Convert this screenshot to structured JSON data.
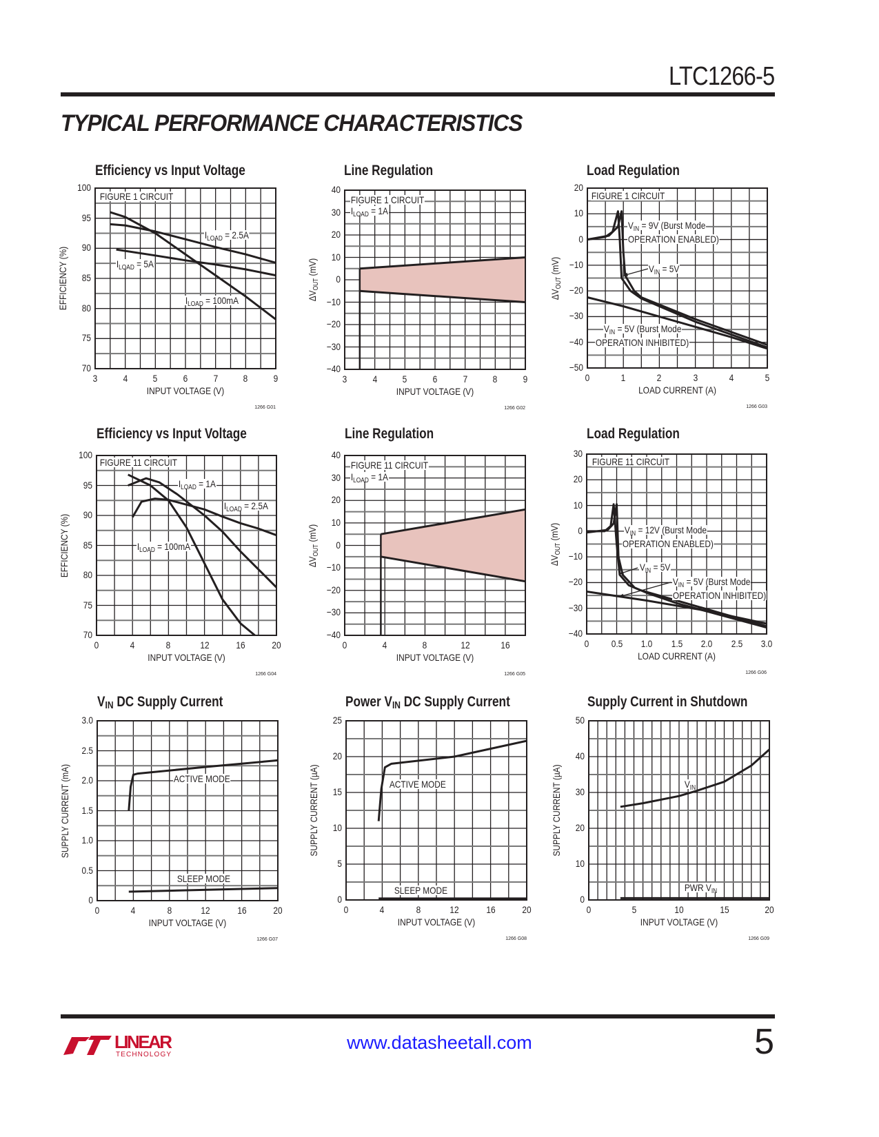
{
  "header": {
    "part_number": "LTC1266-5",
    "section_title": "TYPICAL PERFORMANCE CHARACTERISTICS"
  },
  "footer": {
    "logo_text": "LINEAR TECHNOLOGY",
    "url": "www.datasheetall.com",
    "page_number": "5"
  },
  "colors": {
    "ink": "#231f20",
    "band_fill": "#e8c3bd",
    "url": "#1a1aff"
  },
  "chart_data": [
    {
      "type": "line",
      "code": "1266 G01",
      "title": {
        "pre": "",
        "sub": "",
        "post": "Efficiency vs Input Voltage"
      },
      "xlabel": {
        "pre": "INPUT VOLTAGE (V)",
        "sub": "",
        "post": ""
      },
      "ylabel": {
        "pre": "EFFICIENCY (%)",
        "sub": "",
        "post": ""
      },
      "xlim": [
        3,
        9
      ],
      "ylim": [
        70,
        100
      ],
      "xticks": [
        "3",
        "4",
        "5",
        "6",
        "7",
        "8",
        "9"
      ],
      "yticks": [
        "70",
        "75",
        "80",
        "85",
        "90",
        "95",
        "100"
      ],
      "grid": true,
      "annotations": [
        {
          "pre": "FIGURE 1 CIRCUIT",
          "sub": "",
          "post": ""
        },
        {
          "pre": "I",
          "sub": "LOAD",
          "post": " = 2.5A"
        },
        {
          "pre": "I",
          "sub": "LOAD",
          "post": " = 5A"
        },
        {
          "pre": "I",
          "sub": "LOAD",
          "post": " = 100mA"
        }
      ],
      "series": [
        {
          "name": "ILOAD = 100mA",
          "x": [
            3.5,
            4,
            5,
            6,
            7,
            8,
            9
          ],
          "y": [
            96,
            95.2,
            92.5,
            89,
            85.5,
            82,
            78.2
          ]
        },
        {
          "name": "ILOAD = 2.5A",
          "x": [
            3.5,
            4,
            5,
            6,
            7,
            8,
            9
          ],
          "y": [
            94,
            93.8,
            92.8,
            91.5,
            90.2,
            89,
            87.6
          ]
        },
        {
          "name": "ILOAD = 5A",
          "x": [
            3.7,
            5,
            6,
            7,
            8,
            9
          ],
          "y": [
            89.8,
            88.8,
            88,
            87.3,
            86.5,
            85.5
          ]
        }
      ]
    },
    {
      "type": "area",
      "code": "1266 G02",
      "title": {
        "pre": "",
        "sub": "",
        "post": "Line Regulation"
      },
      "xlabel": {
        "pre": "INPUT VOLTAGE (V)",
        "sub": "",
        "post": ""
      },
      "ylabel": {
        "pre": "ΔV",
        "sub": "OUT",
        "post": " (mV)"
      },
      "xlim": [
        3,
        9
      ],
      "ylim": [
        -40,
        40
      ],
      "xticks": [
        "3",
        "4",
        "5",
        "6",
        "7",
        "8",
        "9"
      ],
      "yticks": [
        "−40",
        "−30",
        "−20",
        "−10",
        "0",
        "10",
        "20",
        "30",
        "40"
      ],
      "grid": true,
      "annotations": [
        {
          "pre": "FIGURE 1 CIRCUIT",
          "sub": "",
          "post": ""
        },
        {
          "pre": "I",
          "sub": "LOAD",
          "post": " = 1A"
        }
      ],
      "band": {
        "x": [
          3.5,
          9
        ],
        "upper": [
          5,
          10
        ],
        "lower": [
          -5,
          -10
        ]
      },
      "startup_x": 3.5
    },
    {
      "type": "line",
      "code": "1266 G03",
      "title": {
        "pre": "",
        "sub": "",
        "post": "Load Regulation"
      },
      "xlabel": {
        "pre": "LOAD CURRENT (A)",
        "sub": "",
        "post": ""
      },
      "ylabel": {
        "pre": "ΔV",
        "sub": "OUT",
        "post": " (mV)"
      },
      "xlim": [
        0,
        5
      ],
      "ylim": [
        -50,
        20
      ],
      "xticks": [
        "0",
        "1",
        "2",
        "3",
        "4",
        "5"
      ],
      "yticks": [
        "−50",
        "−40",
        "−30",
        "−20",
        "−10",
        "0",
        "10",
        "20"
      ],
      "grid": true,
      "annotations": [
        {
          "pre": "FIGURE 1 CIRCUIT",
          "sub": "",
          "post": ""
        },
        {
          "pre": "V",
          "sub": "IN",
          "post": " = 9V (Burst Mode"
        },
        {
          "pre": "OPERATION ENABLED)",
          "sub": "",
          "post": ""
        },
        {
          "pre": "V",
          "sub": "IN",
          "post": " = 5V"
        },
        {
          "pre": "V",
          "sub": "IN",
          "post": " = 5V (Burst Mode"
        },
        {
          "pre": "OPERATION INHIBITED)",
          "sub": "",
          "post": ""
        }
      ],
      "series": [
        {
          "name": "VIN = 9V (Burst Mode operation enabled)",
          "x": [
            0,
            0.5,
            0.7,
            0.85,
            0.9,
            0.95,
            1.2,
            1.5,
            3,
            5
          ],
          "y": [
            0,
            1,
            3,
            11,
            0,
            -15,
            -20,
            -23,
            -32,
            -42
          ]
        },
        {
          "name": "VIN = 5V",
          "x": [
            0,
            0.6,
            0.85,
            0.95,
            1.0,
            1.05,
            1.3,
            1.5,
            3,
            5
          ],
          "y": [
            0,
            1.5,
            5,
            11,
            -5,
            -14,
            -20,
            -22.5,
            -31,
            -41
          ]
        },
        {
          "name": "VIN = 5V (Burst Mode operation inhibited)",
          "x": [
            0,
            1,
            2,
            3,
            4,
            5
          ],
          "y": [
            -22.5,
            -26,
            -30,
            -34,
            -38,
            -42.5
          ]
        }
      ]
    },
    {
      "type": "line",
      "code": "1266 G04",
      "title": {
        "pre": "",
        "sub": "",
        "post": "Efficiency vs Input Voltage"
      },
      "xlabel": {
        "pre": "INPUT VOLTAGE (V)",
        "sub": "",
        "post": ""
      },
      "ylabel": {
        "pre": "EFFICIENCY (%)",
        "sub": "",
        "post": ""
      },
      "xlim": [
        0,
        20
      ],
      "ylim": [
        70,
        100
      ],
      "xticks": [
        "0",
        "4",
        "8",
        "12",
        "16",
        "20"
      ],
      "yticks": [
        "70",
        "75",
        "80",
        "85",
        "90",
        "95",
        "100"
      ],
      "grid": true,
      "annotations": [
        {
          "pre": "FIGURE 11 CIRCUIT",
          "sub": "",
          "post": ""
        },
        {
          "pre": "I",
          "sub": "LOAD",
          "post": " = 1A"
        },
        {
          "pre": "I",
          "sub": "LOAD",
          "post": " = 2.5A"
        },
        {
          "pre": "I",
          "sub": "LOAD",
          "post": " = 100mA"
        }
      ],
      "series": [
        {
          "name": "ILOAD = 100mA",
          "x": [
            3.5,
            6,
            8,
            10,
            12,
            14,
            16,
            17.6
          ],
          "y": [
            96.8,
            95,
            92.5,
            88,
            82,
            76,
            72,
            70
          ]
        },
        {
          "name": "ILOAD = 1A",
          "x": [
            3.5,
            5.5,
            7,
            9,
            12,
            14,
            16,
            18,
            20
          ],
          "y": [
            95,
            96.2,
            95.5,
            93.5,
            90,
            87.3,
            84,
            81,
            78
          ]
        },
        {
          "name": "ILOAD = 2.5A",
          "x": [
            4,
            5,
            6.5,
            8,
            10,
            12,
            14,
            16,
            18,
            20
          ],
          "y": [
            89.7,
            92.3,
            92.8,
            92.6,
            91.8,
            91,
            89.8,
            88.7,
            87.8,
            86.7
          ]
        }
      ]
    },
    {
      "type": "area",
      "code": "1266 G05",
      "title": {
        "pre": "",
        "sub": "",
        "post": "Line Regulation"
      },
      "xlabel": {
        "pre": "INPUT VOLTAGE (V)",
        "sub": "",
        "post": ""
      },
      "ylabel": {
        "pre": "ΔV",
        "sub": "OUT",
        "post": " (mV)"
      },
      "xlim": [
        0,
        18
      ],
      "ylim": [
        -40,
        40
      ],
      "xticks": [
        "0",
        "4",
        "8",
        "12",
        "16"
      ],
      "yticks": [
        "−40",
        "−30",
        "−20",
        "−10",
        "0",
        "10",
        "20",
        "30",
        "40"
      ],
      "grid": true,
      "annotations": [
        {
          "pre": "FIGURE 11 CIRCUIT",
          "sub": "",
          "post": ""
        },
        {
          "pre": "I",
          "sub": "LOAD",
          "post": " = 1A"
        }
      ],
      "band": {
        "x": [
          3.6,
          18
        ],
        "upper": [
          5,
          16
        ],
        "lower": [
          -5,
          -16
        ]
      },
      "startup_x": 3.6
    },
    {
      "type": "line",
      "code": "1266 G06",
      "title": {
        "pre": "",
        "sub": "",
        "post": "Load Regulation"
      },
      "xlabel": {
        "pre": "LOAD CURRENT (A)",
        "sub": "",
        "post": ""
      },
      "ylabel": {
        "pre": "ΔV",
        "sub": "OUT",
        "post": " (mV)"
      },
      "xlim": [
        0,
        3
      ],
      "ylim": [
        -40,
        30
      ],
      "xticks": [
        "0",
        "0.5",
        "1.0",
        "1.5",
        "2.0",
        "2.5",
        "3.0"
      ],
      "yticks": [
        "−40",
        "−30",
        "−20",
        "−10",
        "0",
        "10",
        "20",
        "30"
      ],
      "grid": true,
      "annotations": [
        {
          "pre": "FIGURE 11 CIRCUIT",
          "sub": "",
          "post": ""
        },
        {
          "pre": "V",
          "sub": "IN",
          "post": " = 12V (Burst Mode"
        },
        {
          "pre": "OPERATION ENABLED)",
          "sub": "",
          "post": ""
        },
        {
          "pre": "V",
          "sub": "IN",
          "post": " = 5V"
        },
        {
          "pre": "V",
          "sub": "IN",
          "post": " = 5V (Burst Mode"
        },
        {
          "pre": "OPERATION INHIBITED)",
          "sub": "",
          "post": ""
        }
      ],
      "series": [
        {
          "name": "VIN = 12V (Burst Mode operation enabled)",
          "x": [
            0,
            0.3,
            0.4,
            0.45,
            0.5,
            0.55,
            0.7,
            0.9,
            1.5,
            3
          ],
          "y": [
            0,
            0,
            2,
            10.5,
            -5,
            -17,
            -21,
            -23,
            -27,
            -37
          ]
        },
        {
          "name": "VIN = 5V",
          "x": [
            0,
            0.35,
            0.45,
            0.5,
            0.53,
            0.6,
            0.8,
            1,
            1.5,
            3
          ],
          "y": [
            -0.5,
            0.5,
            3,
            10.5,
            -10,
            -17,
            -22,
            -24,
            -28,
            -37.5
          ]
        },
        {
          "name": "VIN = 5V (Burst Mode operation inhibited)",
          "x": [
            0,
            1,
            2,
            3
          ],
          "y": [
            -23.5,
            -27,
            -31,
            -36
          ]
        }
      ]
    },
    {
      "type": "line",
      "code": "1266 G07",
      "title": {
        "pre": "V",
        "sub": "IN",
        "post": " DC Supply Current"
      },
      "xlabel": {
        "pre": "INPUT VOLTAGE (V)",
        "sub": "",
        "post": ""
      },
      "ylabel": {
        "pre": "SUPPLY CURRENT (mA)",
        "sub": "",
        "post": ""
      },
      "xlim": [
        0,
        20
      ],
      "ylim": [
        0,
        3
      ],
      "xticks": [
        "0",
        "4",
        "8",
        "12",
        "16",
        "20"
      ],
      "yticks": [
        "0",
        "0.5",
        "1.0",
        "1.5",
        "2.0",
        "2.5",
        "3.0"
      ],
      "grid": true,
      "annotations": [
        {
          "pre": "ACTIVE MODE",
          "sub": "",
          "post": ""
        },
        {
          "pre": "SLEEP MODE",
          "sub": "",
          "post": ""
        }
      ],
      "series": [
        {
          "name": "ACTIVE MODE",
          "x": [
            3.5,
            3.7,
            4,
            4.5,
            12,
            20
          ],
          "y": [
            1.5,
            1.9,
            2.1,
            2.12,
            2.23,
            2.34
          ]
        },
        {
          "name": "SLEEP MODE",
          "x": [
            3.5,
            20
          ],
          "y": [
            0.15,
            0.21
          ]
        }
      ]
    },
    {
      "type": "line",
      "code": "1266 G08",
      "title": {
        "pre": "Power V",
        "sub": "IN",
        "post": " DC Supply Current"
      },
      "xlabel": {
        "pre": "INPUT VOLTAGE (V)",
        "sub": "",
        "post": ""
      },
      "ylabel": {
        "pre": "SUPPLY CURRENT (µA)",
        "sub": "",
        "post": ""
      },
      "xlim": [
        0,
        20
      ],
      "ylim": [
        0,
        25
      ],
      "xticks": [
        "0",
        "4",
        "8",
        "12",
        "16",
        "20"
      ],
      "yticks": [
        "0",
        "5",
        "10",
        "15",
        "20",
        "25"
      ],
      "grid": true,
      "annotations": [
        {
          "pre": "ACTIVE MODE",
          "sub": "",
          "post": ""
        },
        {
          "pre": "SLEEP MODE",
          "sub": "",
          "post": ""
        }
      ],
      "series": [
        {
          "name": "ACTIVE MODE",
          "x": [
            3.6,
            3.9,
            4.3,
            5,
            12,
            20
          ],
          "y": [
            11,
            15.5,
            18.5,
            19,
            20,
            22.2
          ]
        },
        {
          "name": "SLEEP MODE",
          "x": [
            3.6,
            20
          ],
          "y": [
            0.2,
            0.2
          ]
        }
      ]
    },
    {
      "type": "line",
      "code": "1266 G09",
      "title": {
        "pre": "Supply Current in Shutdown",
        "sub": "",
        "post": ""
      },
      "xlabel": {
        "pre": "INPUT VOLTAGE (V)",
        "sub": "",
        "post": ""
      },
      "ylabel": {
        "pre": "SUPPLY CURRENT (µA)",
        "sub": "",
        "post": ""
      },
      "xlim": [
        0,
        20
      ],
      "ylim": [
        0,
        50
      ],
      "xticks": [
        "0",
        "5",
        "10",
        "15",
        "20"
      ],
      "yticks": [
        "0",
        "10",
        "20",
        "30",
        "40",
        "50"
      ],
      "grid": true,
      "annotations": [
        {
          "pre": "V",
          "sub": "IN",
          "post": ""
        },
        {
          "pre": "PWR V",
          "sub": "IN",
          "post": ""
        }
      ],
      "series": [
        {
          "name": "VIN",
          "x": [
            3.5,
            6,
            10,
            12,
            15,
            18,
            20
          ],
          "y": [
            26,
            27,
            29,
            30.5,
            33,
            37.5,
            42
          ]
        },
        {
          "name": "PWR VIN",
          "x": [
            3.5,
            20
          ],
          "y": [
            0.5,
            0.5
          ]
        }
      ]
    }
  ]
}
